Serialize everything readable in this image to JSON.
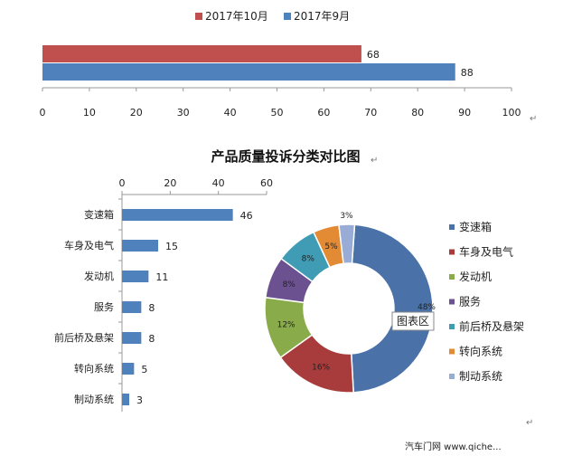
{
  "chart_data": [
    {
      "type": "bar",
      "orientation": "horizontal",
      "series": [
        {
          "name": "2017年10月",
          "values": [
            68
          ],
          "color": "#c0504d"
        },
        {
          "name": "2017年9月",
          "values": [
            88
          ],
          "color": "#4f81bd"
        }
      ],
      "xlim": [
        0,
        100
      ],
      "xticks": [
        "0",
        "10",
        "20",
        "30",
        "40",
        "50",
        "60",
        "70",
        "80",
        "90",
        "100"
      ],
      "legend_position": "top"
    },
    {
      "type": "bar",
      "orientation": "horizontal",
      "categories": [
        "变速箱",
        "车身及电气",
        "发动机",
        "服务",
        "前后桥及悬架",
        "转向系统",
        "制动系统"
      ],
      "values": [
        46,
        15,
        11,
        8,
        8,
        5,
        3
      ],
      "xlim": [
        0,
        60
      ],
      "xticks": [
        "0",
        "20",
        "40",
        "60"
      ],
      "color": "#4f81bd"
    },
    {
      "type": "pie",
      "donut": true,
      "title": "产品质量投诉分类对比图",
      "labels": [
        "变速箱",
        "车身及电气",
        "发动机",
        "服务",
        "前后桥及悬架",
        "转向系统",
        "制动系统"
      ],
      "values": [
        48,
        16,
        12,
        8,
        8,
        5,
        3
      ],
      "value_labels": [
        "48%",
        "16%",
        "12%",
        "8%",
        "8%",
        "5%",
        "3%"
      ],
      "colors": [
        "#4a72a8",
        "#a83c3c",
        "#8aab4a",
        "#6b5190",
        "#3f9cb4",
        "#e38a35",
        "#99acd6"
      ],
      "legend_position": "right",
      "tooltip": "图表区"
    }
  ],
  "marks": {
    "return": "↵"
  },
  "footer": {
    "watermark": "汽车门网 www.qiche..."
  }
}
